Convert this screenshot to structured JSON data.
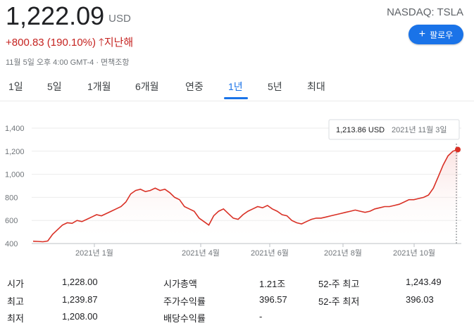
{
  "quote": {
    "price": "1,222.09",
    "currency": "USD",
    "change": "+800.83 (190.10%)",
    "change_arrow": "🡑",
    "change_period": "지난해",
    "timestamp": "11월 5일 오후 4:00 GMT-4 · 면책조항",
    "exchange": "NASDAQ: TSLA",
    "follow_label": "팔로우",
    "follow_icon": "plus-icon",
    "up_color": "#c5221f"
  },
  "tabs": [
    "1일",
    "5일",
    "1개월",
    "6개월",
    "연중",
    "1년",
    "5년",
    "최대"
  ],
  "active_tab": "1년",
  "tooltip": {
    "value": "1,213.86 USD",
    "date": "2021년 11월 3일"
  },
  "chart_data": {
    "type": "area",
    "title": "",
    "xlabel": "",
    "ylabel": "",
    "ylim": [
      400,
      1400
    ],
    "yticks": [
      "1,400",
      "1,200",
      "1,000",
      "800",
      "600",
      "400"
    ],
    "xticks": [
      "2021년 1월",
      "2021년 4월",
      "2021년 6월",
      "2021년 8월",
      "2021년 10월"
    ],
    "line_color": "#d93025",
    "grid": true,
    "series": [
      {
        "values": [
          420,
          418,
          415,
          422,
          480,
          520,
          560,
          580,
          575,
          600,
          590,
          610,
          630,
          650,
          640,
          660,
          680,
          700,
          720,
          760,
          830,
          860,
          870,
          850,
          860,
          880,
          860,
          870,
          840,
          800,
          780,
          720,
          700,
          680,
          620,
          590,
          560,
          640,
          680,
          700,
          660,
          620,
          610,
          650,
          680,
          700,
          720,
          710,
          730,
          700,
          680,
          650,
          640,
          600,
          580,
          570,
          590,
          610,
          620,
          620,
          630,
          640,
          650,
          660,
          670,
          680,
          690,
          680,
          670,
          680,
          700,
          710,
          720,
          720,
          730,
          740,
          760,
          780,
          780,
          790,
          800,
          820,
          880,
          980,
          1080,
          1160,
          1200,
          1214
        ]
      }
    ]
  },
  "stats": [
    [
      {
        "label": "시가",
        "value": "1,228.00"
      },
      {
        "label": "시가총액",
        "value": "1.21조"
      },
      {
        "label": "52-주 최고",
        "value": "1,243.49"
      }
    ],
    [
      {
        "label": "최고",
        "value": "1,239.87"
      },
      {
        "label": "주가수익률",
        "value": "396.57"
      },
      {
        "label": "52-주 최저",
        "value": "396.03"
      }
    ],
    [
      {
        "label": "최저",
        "value": "1,208.00"
      },
      {
        "label": "배당수익률",
        "value": "-"
      },
      {
        "label": "",
        "value": ""
      }
    ]
  ]
}
